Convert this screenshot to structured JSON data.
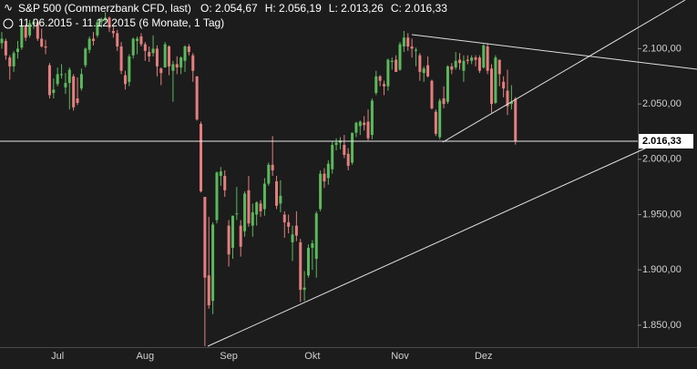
{
  "chart_data": {
    "type": "candlestick",
    "title": "S&P 500 (Commerzbank CFD, last)",
    "subtitle": "11.06.2015 - 11.12.2015 (6 Monate, 1 Tag)",
    "ohlc_labels": [
      "O: 2.054,67",
      "H: 2.056,19",
      "L: 2.013,26",
      "C: 2.016,33"
    ],
    "last_price_label": "2.016,33",
    "up_color": "#5cb85c",
    "down_color": "#e57f7f",
    "ylim": [
      1831,
      2144
    ],
    "yticks": [
      {
        "value": 1850,
        "label": "1.850,00"
      },
      {
        "value": 1900,
        "label": "1.900,00"
      },
      {
        "value": 1950,
        "label": "1.950,00"
      },
      {
        "value": 2000,
        "label": "2.000,00"
      },
      {
        "value": 2050,
        "label": "2.050,00"
      },
      {
        "value": 2100,
        "label": "2.100,00"
      }
    ],
    "categories": [
      null,
      null,
      null,
      null,
      null,
      null,
      null,
      null,
      null,
      null,
      null,
      null,
      null,
      null,
      "Jul",
      null,
      null,
      null,
      null,
      null,
      null,
      null,
      null,
      null,
      null,
      null,
      null,
      null,
      null,
      null,
      null,
      null,
      null,
      null,
      null,
      null,
      "Aug",
      null,
      null,
      null,
      null,
      null,
      null,
      null,
      null,
      null,
      null,
      null,
      null,
      null,
      null,
      null,
      null,
      null,
      null,
      null,
      null,
      "Sep",
      null,
      null,
      null,
      null,
      null,
      null,
      null,
      null,
      null,
      null,
      null,
      null,
      null,
      null,
      null,
      null,
      null,
      null,
      null,
      null,
      "Okt",
      null,
      null,
      null,
      null,
      null,
      null,
      null,
      null,
      null,
      null,
      null,
      null,
      null,
      null,
      null,
      null,
      null,
      null,
      null,
      null,
      null,
      "Nov",
      null,
      null,
      null,
      null,
      null,
      null,
      null,
      null,
      null,
      null,
      null,
      null,
      null,
      null,
      null,
      null,
      null,
      null,
      null,
      null,
      "Dez",
      null,
      null,
      null,
      null,
      null,
      null,
      null,
      null
    ],
    "open": [
      2105,
      2107,
      2092,
      2084,
      2097,
      2101,
      2120,
      2112,
      2122,
      2124,
      2109,
      2102,
      2085,
      2060,
      2068,
      2077,
      2065,
      2069,
      2075,
      2055,
      2064,
      2085,
      2099,
      2109,
      2112,
      2124,
      2127,
      2128,
      2116,
      2114,
      2102,
      2076,
      2070,
      2094,
      2107,
      2111,
      2104,
      2097,
      2096,
      2100,
      2082,
      2083,
      2102,
      2080,
      2086,
      2083,
      2089,
      2102,
      2094,
      2075,
      2032,
      1966,
      1895,
      1872,
      1945,
      1985,
      1985,
      1940,
      1920,
      1951,
      1940,
      1935,
      1972,
      1940,
      1950,
      1960,
      1955,
      1978,
      1995,
      1980,
      1960,
      1950,
      1943,
      1925,
      1940,
      1925,
      1882,
      1895,
      1920,
      1910,
      1955,
      1987,
      1983,
      1991,
      2013,
      2015,
      2013,
      2005,
      1997,
      2024,
      2030,
      2033,
      2034,
      2022,
      2060,
      2075,
      2068,
      2066,
      2088,
      2090,
      2081,
      2102,
      2110,
      2102,
      2098,
      2094,
      2078,
      2085,
      2071,
      2043,
      2020,
      2055,
      2052,
      2084,
      2083,
      2090,
      2080,
      2090,
      2089,
      2092,
      2092,
      2083,
      2102,
      2082,
      2051,
      2090,
      2070,
      2062,
      2050,
      2054.67
    ],
    "high": [
      2115,
      2109,
      2094,
      2098,
      2107,
      2127,
      2122,
      2126,
      2127,
      2125,
      2118,
      2108,
      2087,
      2073,
      2083,
      2086,
      2078,
      2083,
      2077,
      2074,
      2082,
      2101,
      2111,
      2115,
      2126,
      2128,
      2133,
      2129,
      2120,
      2117,
      2106,
      2080,
      2095,
      2110,
      2111,
      2114,
      2106,
      2102,
      2112,
      2103,
      2083,
      2106,
      2103,
      2089,
      2093,
      2093,
      2103,
      2104,
      2096,
      2075,
      2034,
      1966,
      1948,
      1943,
      1989,
      1993,
      1990,
      1945,
      1949,
      1975,
      1945,
      1971,
      1985,
      1960,
      1962,
      1963,
      1983,
      1997,
      2021,
      1985,
      1981,
      1953,
      1950,
      1940,
      1953,
      1928,
      1899,
      1923,
      1927,
      1953,
      1990,
      1992,
      1999,
      2016,
      2019,
      2020,
      2022,
      2010,
      2024,
      2034,
      2035,
      2039,
      2045,
      2055,
      2080,
      2076,
      2071,
      2091,
      2092,
      2094,
      2106,
      2116,
      2114,
      2109,
      2101,
      2096,
      2084,
      2093,
      2072,
      2045,
      2055,
      2066,
      2085,
      2087,
      2097,
      2096,
      2094,
      2094,
      2094,
      2094,
      2094,
      2104,
      2105,
      2086,
      2094,
      2090,
      2075,
      2081,
      2067,
      2056.19
    ],
    "low": [
      2100,
      2090,
      2072,
      2079,
      2091,
      2099,
      2107,
      2110,
      2118,
      2107,
      2101,
      2095,
      2055,
      2055,
      2066,
      2073,
      2059,
      2045,
      2044,
      2049,
      2062,
      2083,
      2096,
      2103,
      2110,
      2119,
      2124,
      2115,
      2110,
      2098,
      2077,
      2063,
      2066,
      2091,
      2095,
      2102,
      2089,
      2088,
      2093,
      2075,
      2067,
      2083,
      2076,
      2052,
      2077,
      2077,
      2079,
      2094,
      2070,
      2035,
      1970,
      1831,
      1865,
      1860,
      1942,
      1976,
      1966,
      1903,
      1910,
      1945,
      1912,
      1930,
      1939,
      1930,
      1940,
      1948,
      1949,
      1976,
      1985,
      1955,
      1952,
      1929,
      1933,
      1908,
      1926,
      1871,
      1872,
      1893,
      1900,
      1893,
      1953,
      1974,
      1977,
      1987,
      2008,
      2009,
      2001,
      1990,
      1995,
      2020,
      2022,
      2026,
      2017,
      2018,
      2058,
      2066,
      2058,
      2062,
      2081,
      2079,
      2080,
      2097,
      2098,
      2092,
      2084,
      2071,
      2070,
      2074,
      2045,
      2021,
      2018,
      2046,
      2050,
      2077,
      2081,
      2081,
      2070,
      2086,
      2086,
      2084,
      2078,
      2082,
      2077,
      2042,
      2050,
      2066,
      2056,
      2040,
      2045,
      2013.26
    ],
    "close": [
      2109,
      2094,
      2084,
      2096,
      2100,
      2121,
      2110,
      2123,
      2124,
      2109,
      2102,
      2101,
      2058,
      2063,
      2077,
      2077,
      2069,
      2081,
      2047,
      2051,
      2077,
      2100,
      2109,
      2107,
      2124,
      2127,
      2128,
      2119,
      2114,
      2102,
      2080,
      2068,
      2093,
      2109,
      2109,
      2104,
      2098,
      2093,
      2100,
      2084,
      2078,
      2104,
      2084,
      2086,
      2083,
      2092,
      2102,
      2097,
      2080,
      2036,
      1971,
      1893,
      1868,
      1941,
      1988,
      1989,
      1972,
      1914,
      1949,
      1951,
      1921,
      1969,
      1942,
      1952,
      1961,
      1953,
      1978,
      1995,
      1990,
      1958,
      1967,
      1943,
      1939,
      1932,
      1931,
      1882,
      1884,
      1920,
      1924,
      1951,
      1987,
      1980,
      1996,
      2013,
      2015,
      2017,
      2004,
      1994,
      2024,
      2033,
      2034,
      2031,
      2019,
      2053,
      2075,
      2071,
      2066,
      2090,
      2089,
      2079,
      2104,
      2110,
      2102,
      2100,
      2099,
      2079,
      2082,
      2075,
      2046,
      2023,
      2053,
      2050,
      2084,
      2081,
      2089,
      2087,
      2089,
      2089,
      2092,
      2090,
      2080,
      2103,
      2080,
      2050,
      2092,
      2077,
      2064,
      2048,
      2052,
      2016.33
    ]
  }
}
